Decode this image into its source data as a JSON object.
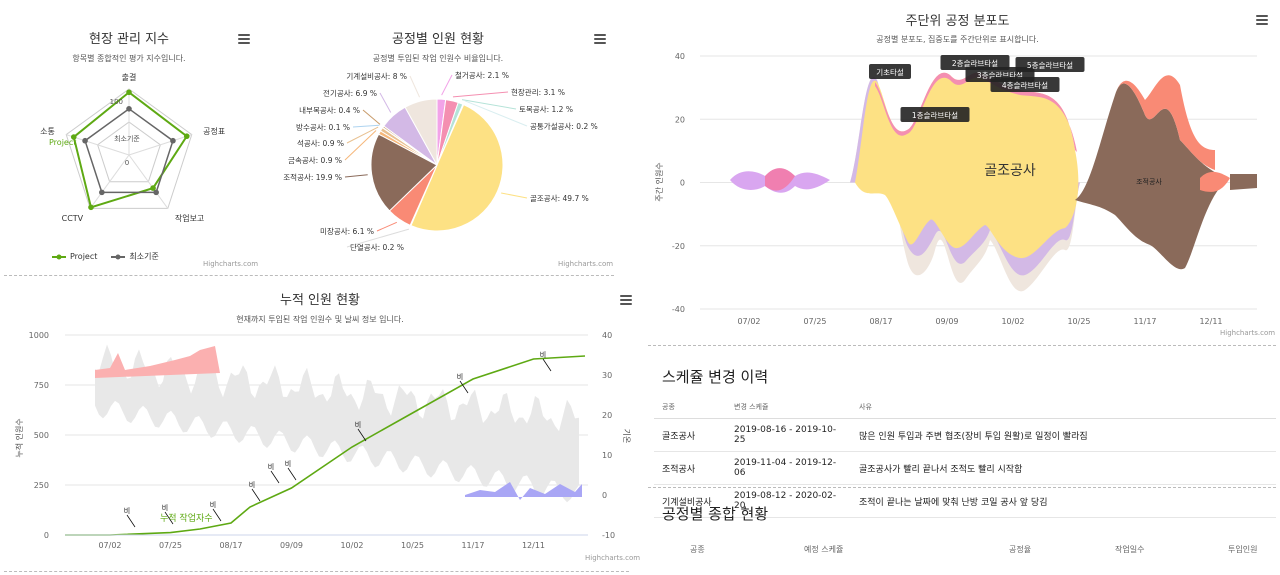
{
  "radar": {
    "title": "현장 관리 지수",
    "subtitle": "항목별 종합적인 평가 지수입니다.",
    "credits": "Highcharts.com",
    "axes": [
      "출결",
      "공정표",
      "작업보고",
      "CCTV",
      "소통"
    ],
    "tick_labels": [
      "100",
      "최소기준",
      "0"
    ],
    "tooltip": "Project",
    "legend": [
      "Project",
      "최소기준"
    ],
    "colors": {
      "project": "#5ea913",
      "minimum": "#666666"
    }
  },
  "pie": {
    "title": "공정별 인원 현황",
    "subtitle": "공정별 투입된 작업 인원수 비율입니다.",
    "credits": "Highcharts.com"
  },
  "cumulative": {
    "title": "누적 인원 현황",
    "subtitle": "현재까지 투입된 작업 인원수 및 날씨 정보 입니다.",
    "credits": "Highcharts.com",
    "ylabel_left": "누적 인원수",
    "ylabel_right": "기온",
    "series_label": "누적 작업자수",
    "rain_label": "비"
  },
  "stream": {
    "title": "주단위 공정 분포도",
    "subtitle": "공정별 분포도, 집중도를 주간단위로 표시합니다.",
    "credits": "Highcharts.com",
    "ylabel": "주간 인원수",
    "center_label": "골조공사",
    "right_label": "조적공사",
    "annotations": [
      "기초타설",
      "1층슬라브타설",
      "2층슬라브타설",
      "3층슬라브타설",
      "4층슬라브타설",
      "5층슬라브타설"
    ]
  },
  "changes": {
    "title": "스케쥴 변경 이력",
    "headers": [
      "공종",
      "변경 스케쥴",
      "사유"
    ],
    "rows": [
      [
        "골조공사",
        "2019-08-16 - 2019-10-25",
        "많은 인원 투입과 주변 협조(장비 투입 원활)로 일정이 빨라짐"
      ],
      [
        "조적공사",
        "2019-11-04 - 2019-12-06",
        "골조공사가 빨리 끝나서 조적도 빨리 시작함"
      ],
      [
        "기계설비공사",
        "2019-08-12 - 2020-02-20",
        "조적이 끝나는 날짜에 맞춰 난방 코일 공사 앞 당김"
      ]
    ]
  },
  "summary": {
    "title": "공정별 종합 현황",
    "headers": [
      "공종",
      "예정 스케쥴",
      "공정율",
      "작업일수",
      "투입인원"
    ]
  },
  "chart_data": [
    {
      "type": "radar",
      "title": "현장 관리 지수",
      "categories": [
        "출결",
        "공정표",
        "작업보고",
        "CCTV",
        "소통"
      ],
      "ylim": [
        0,
        100
      ],
      "series": [
        {
          "name": "Project",
          "values": [
            95,
            92,
            62,
            98,
            88
          ]
        },
        {
          "name": "최소기준",
          "values": [
            70,
            70,
            70,
            70,
            70
          ]
        }
      ]
    },
    {
      "type": "pie",
      "title": "공정별 인원 현황",
      "series": [
        {
          "name": "철거공사",
          "value": 2.1,
          "color": "#f2a3e8"
        },
        {
          "name": "현장관리",
          "value": 3.1,
          "color": "#f48fb1"
        },
        {
          "name": "토목공사",
          "value": 1.2,
          "color": "#b5e3d8"
        },
        {
          "name": "공통가설공사",
          "value": 0.2,
          "color": "#d9eef0"
        },
        {
          "name": "골조공사",
          "value": 49.7,
          "color": "#fde184"
        },
        {
          "name": "단열공사",
          "value": 0.2,
          "color": "#dddddd"
        },
        {
          "name": "미장공사",
          "value": 6.1,
          "color": "#f98a75"
        },
        {
          "name": "조적공사",
          "value": 19.9,
          "color": "#8a6a5a"
        },
        {
          "name": "금속공사",
          "value": 0.9,
          "color": "#f6b77a"
        },
        {
          "name": "석공사",
          "value": 0.9,
          "color": "#e8c090"
        },
        {
          "name": "방수공사",
          "value": 0.1,
          "color": "#aed4f0"
        },
        {
          "name": "내부목공사",
          "value": 0.4,
          "color": "#c89b6a"
        },
        {
          "name": "전기공사",
          "value": 6.9,
          "color": "#d3b9e6"
        },
        {
          "name": "기계설비공사",
          "value": 8.0,
          "color": "#efe6de"
        }
      ]
    },
    {
      "type": "line",
      "title": "누적 인원 현황",
      "x_ticks": [
        "07/02",
        "07/25",
        "08/17",
        "09/09",
        "10/02",
        "10/25",
        "11/17",
        "12/11"
      ],
      "ylim": [
        0,
        1000
      ],
      "y_ticks": [
        0,
        250,
        500,
        750,
        1000
      ],
      "y2lim": [
        -10,
        40
      ],
      "y2_ticks": [
        -10,
        0,
        10,
        20,
        30,
        40
      ],
      "series": [
        {
          "name": "누적 작업자수",
          "x": [
            "07/02",
            "07/25",
            "08/17",
            "09/09",
            "10/02",
            "10/25",
            "11/17",
            "12/11",
            "12/31"
          ],
          "values": [
            0,
            15,
            50,
            240,
            440,
            620,
            780,
            880,
            895
          ]
        }
      ],
      "rain_markers": [
        "07/05",
        "07/25",
        "08/14",
        "08/30",
        "09/05",
        "09/08",
        "09/29",
        "11/12",
        "12/11"
      ]
    },
    {
      "type": "area",
      "title": "주단위 공정 분포도",
      "x_ticks": [
        "07/02",
        "07/25",
        "08/17",
        "09/09",
        "10/02",
        "10/25",
        "11/17",
        "12/11"
      ],
      "ylim": [
        -40,
        40
      ],
      "y_ticks": [
        -40,
        -20,
        0,
        20,
        40
      ],
      "series": [
        {
          "name": "골조공사"
        },
        {
          "name": "조적공사"
        },
        {
          "name": "미장공사"
        },
        {
          "name": "전기공사"
        },
        {
          "name": "기계설비공사"
        },
        {
          "name": "현장관리"
        }
      ]
    }
  ]
}
